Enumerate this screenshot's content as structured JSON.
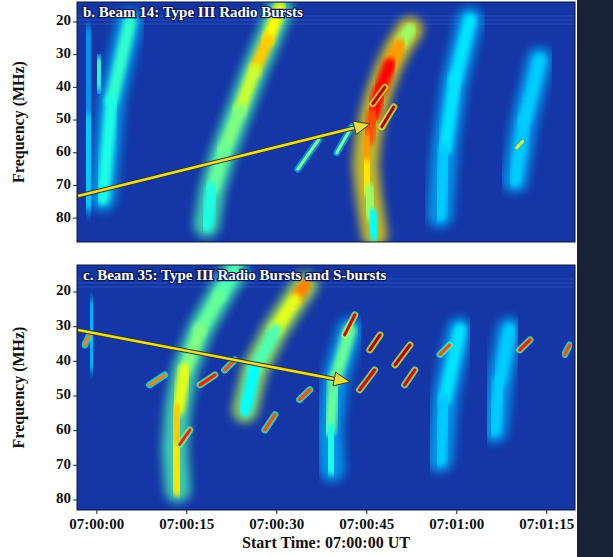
{
  "chart_data": [
    {
      "type": "spectrogram",
      "title": "b. Beam 14: Type III Radio Bursts",
      "y_label": "Frequency (MHz)",
      "xlim": [
        -3.3,
        79.7
      ],
      "ylim": [
        13.9,
        87.3
      ],
      "yticks": [
        20,
        30,
        40,
        50,
        60,
        70,
        80
      ],
      "tick_labels": "y",
      "intensity_range": [
        0,
        1
      ],
      "series": [
        {
          "type": "band",
          "x": [
            -1.5,
            -1.5,
            -1.2
          ],
          "values": [
            25,
            50,
            75
          ],
          "intensity": [
            0.3,
            0.35,
            0.3
          ]
        },
        {
          "type": "band",
          "x": [
            0.2,
            0.5
          ],
          "values": [
            33,
            39
          ],
          "intensity": [
            0.45,
            0.4
          ]
        },
        {
          "type": "band",
          "x": [
            5.5,
            2.5,
            1
          ],
          "values": [
            20,
            44,
            74
          ],
          "intensity": [
            0.4,
            0.45,
            0.35
          ]
        },
        {
          "type": "band",
          "x": [
            30.5,
            28.5,
            26.3,
            23.8,
            21.3,
            19.3,
            18.3
          ],
          "values": [
            16,
            25.5,
            34.7,
            47,
            59,
            71,
            82
          ],
          "intensity": [
            0.55,
            0.7,
            0.65,
            0.5,
            0.5,
            0.45,
            0.35
          ]
        },
        {
          "type": "band",
          "x": [
            52.2,
            50.5,
            48.8,
            47.2,
            46,
            45.2,
            44.8,
            45.2,
            45.8,
            46.3
          ],
          "values": [
            22.4,
            27,
            33,
            40.8,
            48.5,
            56,
            63.8,
            71.4,
            79,
            85
          ],
          "intensity": [
            0.45,
            0.6,
            0.85,
            0.9,
            0.85,
            0.75,
            0.7,
            0.6,
            0.45,
            0.3
          ]
        },
        {
          "type": "band",
          "x": [
            62.2,
            59.7,
            58,
            57.2
          ],
          "values": [
            19.4,
            37.8,
            59,
            79
          ],
          "intensity": [
            0.35,
            0.35,
            0.35,
            0.3
          ]
        },
        {
          "type": "band",
          "x": [
            73.8,
            71.3,
            69.7
          ],
          "values": [
            31.6,
            50,
            68.4
          ],
          "intensity": [
            0.3,
            0.35,
            0.3
          ]
        },
        {
          "type": "streak",
          "x": [
            70,
            71
          ],
          "values": [
            58.5,
            56.5
          ],
          "intensity": [
            0.6,
            0.6
          ]
        },
        {
          "type": "streak",
          "x": [
            33.5,
            37
          ],
          "values": [
            65,
            56
          ],
          "intensity": [
            0.5,
            0.5
          ]
        },
        {
          "type": "streak",
          "x": [
            40,
            42.5
          ],
          "values": [
            60,
            52
          ],
          "intensity": [
            0.5,
            0.5
          ]
        },
        {
          "type": "streak",
          "x": [
            46,
            48
          ],
          "values": [
            45,
            40
          ],
          "intensity": [
            0.95,
            0.95
          ]
        },
        {
          "type": "streak",
          "x": [
            47.5,
            49.5
          ],
          "values": [
            52,
            46
          ],
          "intensity": [
            0.95,
            0.95
          ]
        }
      ]
    },
    {
      "type": "spectrogram",
      "title": "c. Beam 35: Type III Radio Bursts and S-bursts",
      "y_label": "Frequency (MHz)",
      "x_label": "Start Time: 07:00:00 UT",
      "xlim": [
        -3.3,
        79.7
      ],
      "ylim": [
        12.2,
        82.9
      ],
      "yticks": [
        20,
        30,
        40,
        50,
        60,
        70,
        80
      ],
      "xticks": [
        {
          "value": 0,
          "label": "07:00:00"
        },
        {
          "value": 15,
          "label": "07:00:15"
        },
        {
          "value": 30,
          "label": "07:00:30"
        },
        {
          "value": 45,
          "label": "07:00:45"
        },
        {
          "value": 60,
          "label": "07:01:00"
        },
        {
          "value": 75,
          "label": "07:01:15"
        }
      ],
      "intensity_range": [
        0,
        1
      ],
      "series": [
        {
          "type": "band",
          "x": [
            -1,
            -0.8
          ],
          "values": [
            25,
            40
          ],
          "intensity": [
            0.3,
            0.3
          ]
        },
        {
          "type": "band",
          "x": [
            23,
            20.5,
            17.2,
            14.7,
            13.5,
            13,
            13.5
          ],
          "values": [
            13.7,
            20.9,
            31,
            42.5,
            54,
            65.5,
            77
          ],
          "intensity": [
            0.4,
            0.5,
            0.45,
            0.55,
            0.65,
            0.7,
            0.6
          ]
        },
        {
          "type": "band",
          "x": [
            34.7,
            33,
            29.7,
            26.3,
            24.7
          ],
          "values": [
            18,
            22.3,
            31,
            42.5,
            54
          ],
          "intensity": [
            0.8,
            0.7,
            0.5,
            0.4,
            0.35
          ]
        },
        {
          "type": "band",
          "x": [
            42.2,
            39.7,
            38.8,
            39.2
          ],
          "values": [
            31,
            45.4,
            59.8,
            71
          ],
          "intensity": [
            0.45,
            0.5,
            0.45,
            0.35
          ]
        },
        {
          "type": "band",
          "x": [
            60.5,
            58,
            57.2
          ],
          "values": [
            31,
            51,
            68.4
          ],
          "intensity": [
            0.35,
            0.35,
            0.3
          ]
        },
        {
          "type": "band",
          "x": [
            68.8,
            67.2,
            66.3
          ],
          "values": [
            31,
            45.4,
            59.8
          ],
          "intensity": [
            0.3,
            0.35,
            0.3
          ]
        },
        {
          "type": "streak",
          "x": [
            41.3,
            43
          ],
          "values": [
            32.4,
            26.6
          ],
          "intensity": [
            0.9,
            0.9
          ]
        },
        {
          "type": "streak",
          "x": [
            45.5,
            47.2
          ],
          "values": [
            36.7,
            32.4
          ],
          "intensity": [
            0.95,
            0.95
          ]
        },
        {
          "type": "streak",
          "x": [
            49.7,
            52.2
          ],
          "values": [
            41,
            35.3
          ],
          "intensity": [
            0.95,
            0.95
          ]
        },
        {
          "type": "streak",
          "x": [
            43.8,
            46.3
          ],
          "values": [
            48.2,
            42.5
          ],
          "intensity": [
            0.9,
            0.9
          ]
        },
        {
          "type": "streak",
          "x": [
            51.3,
            53
          ],
          "values": [
            46.8,
            42.5
          ],
          "intensity": [
            0.9,
            0.9
          ]
        },
        {
          "type": "streak",
          "x": [
            21.3,
            23
          ],
          "values": [
            42.5,
            39.6
          ],
          "intensity": [
            0.8,
            0.8
          ]
        },
        {
          "type": "streak",
          "x": [
            17.2,
            19.7
          ],
          "values": [
            46.8,
            43.9
          ],
          "intensity": [
            0.85,
            0.85
          ]
        },
        {
          "type": "streak",
          "x": [
            8.8,
            11.3
          ],
          "values": [
            46.8,
            43.9
          ],
          "intensity": [
            0.75,
            0.75
          ]
        },
        {
          "type": "streak",
          "x": [
            13.8,
            15.5
          ],
          "values": [
            64,
            59.8
          ],
          "intensity": [
            0.85,
            0.85
          ]
        },
        {
          "type": "streak",
          "x": [
            70.5,
            72.2
          ],
          "values": [
            36.7,
            33.8
          ],
          "intensity": [
            0.85,
            0.85
          ]
        },
        {
          "type": "streak",
          "x": [
            78,
            78.8
          ],
          "values": [
            38,
            35.3
          ],
          "intensity": [
            0.8,
            0.8
          ]
        },
        {
          "type": "streak",
          "x": [
            33.8,
            35.5
          ],
          "values": [
            51,
            48.2
          ],
          "intensity": [
            0.8,
            0.8
          ]
        },
        {
          "type": "streak",
          "x": [
            28,
            29.7
          ],
          "values": [
            59.8,
            55.4
          ],
          "intensity": [
            0.8,
            0.8
          ]
        },
        {
          "type": "streak",
          "x": [
            57.2,
            58.8
          ],
          "values": [
            38,
            35.3
          ],
          "intensity": [
            0.8,
            0.8
          ]
        },
        {
          "type": "streak",
          "x": [
            -2,
            -1.2
          ],
          "values": [
            35.3,
            32.4
          ],
          "intensity": [
            0.75,
            0.75
          ]
        }
      ]
    }
  ]
}
